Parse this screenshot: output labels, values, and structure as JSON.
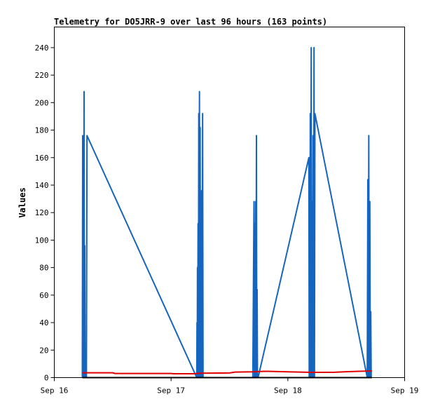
{
  "chart_data": {
    "type": "line",
    "title": "Telemetry for DO5JRR-9 over last 96 hours (163 points)",
    "xlabel": "",
    "ylabel": "Values",
    "xlim": [
      0,
      3
    ],
    "ylim": [
      0,
      255
    ],
    "x_ticks": [
      {
        "value": 0,
        "label": "Sep 16"
      },
      {
        "value": 1,
        "label": "Sep 17"
      },
      {
        "value": 2,
        "label": "Sep 18"
      },
      {
        "value": 3,
        "label": "Sep 19"
      }
    ],
    "y_ticks": [
      0,
      20,
      40,
      60,
      80,
      100,
      120,
      140,
      160,
      180,
      200,
      220,
      240
    ],
    "grid": false,
    "legend": "none",
    "series": [
      {
        "color": "#1565c0",
        "points": [
          [
            0.24,
            0
          ],
          [
            0.243,
            176
          ],
          [
            0.246,
            0
          ],
          [
            0.249,
            128
          ],
          [
            0.252,
            0
          ],
          [
            0.255,
            208
          ],
          [
            0.258,
            0
          ],
          [
            0.261,
            96
          ],
          [
            0.264,
            0
          ],
          [
            0.275,
            0
          ],
          [
            0.28,
            176
          ],
          [
            1.22,
            0
          ],
          [
            1.222,
            40
          ],
          [
            1.224,
            0
          ],
          [
            1.226,
            80
          ],
          [
            1.228,
            0
          ],
          [
            1.231,
            112
          ],
          [
            1.234,
            0
          ],
          [
            1.237,
            192
          ],
          [
            1.24,
            0
          ],
          [
            1.243,
            208
          ],
          [
            1.246,
            0
          ],
          [
            1.249,
            182
          ],
          [
            1.252,
            0
          ],
          [
            1.255,
            128
          ],
          [
            1.258,
            0
          ],
          [
            1.262,
            136
          ],
          [
            1.266,
            0
          ],
          [
            1.27,
            192
          ],
          [
            1.274,
            0
          ],
          [
            1.27,
            0
          ],
          [
            1.3,
            0
          ],
          [
            1.7,
            0
          ],
          [
            1.71,
            128
          ],
          [
            1.713,
            0
          ],
          [
            1.717,
            112
          ],
          [
            1.72,
            0
          ],
          [
            1.724,
            128
          ],
          [
            1.727,
            0
          ],
          [
            1.731,
            176
          ],
          [
            1.734,
            0
          ],
          [
            1.737,
            64
          ],
          [
            1.74,
            0
          ],
          [
            1.745,
            0
          ],
          [
            2.18,
            160
          ],
          [
            2.183,
            0
          ],
          [
            2.186,
            160
          ],
          [
            2.189,
            0
          ],
          [
            2.192,
            192
          ],
          [
            2.195,
            0
          ],
          [
            2.2,
            240
          ],
          [
            2.204,
            0
          ],
          [
            2.208,
            128
          ],
          [
            2.212,
            0
          ],
          [
            2.216,
            176
          ],
          [
            2.22,
            0
          ],
          [
            2.224,
            240
          ],
          [
            2.228,
            0
          ],
          [
            2.232,
            192
          ],
          [
            2.68,
            0
          ],
          [
            2.685,
            144
          ],
          [
            2.689,
            0
          ],
          [
            2.693,
            176
          ],
          [
            2.697,
            0
          ],
          [
            2.702,
            128
          ],
          [
            2.706,
            0
          ],
          [
            2.71,
            48
          ],
          [
            2.714,
            0
          ]
        ]
      },
      {
        "color": "#e00000",
        "points": [
          [
            0.24,
            3.5
          ],
          [
            0.5,
            3.5
          ],
          [
            0.52,
            3.0
          ],
          [
            1.0,
            3.0
          ],
          [
            1.02,
            2.8
          ],
          [
            1.2,
            2.8
          ],
          [
            1.25,
            3.2
          ],
          [
            1.5,
            3.4
          ],
          [
            1.55,
            4.0
          ],
          [
            1.7,
            4.2
          ],
          [
            1.8,
            4.6
          ],
          [
            2.0,
            4.2
          ],
          [
            2.2,
            3.8
          ],
          [
            2.4,
            3.9
          ],
          [
            2.5,
            4.3
          ],
          [
            2.7,
            4.8
          ],
          [
            2.72,
            5.0
          ]
        ]
      },
      {
        "color": "#000000",
        "points": [
          [
            0.24,
            0
          ],
          [
            2.72,
            0
          ]
        ]
      }
    ]
  }
}
